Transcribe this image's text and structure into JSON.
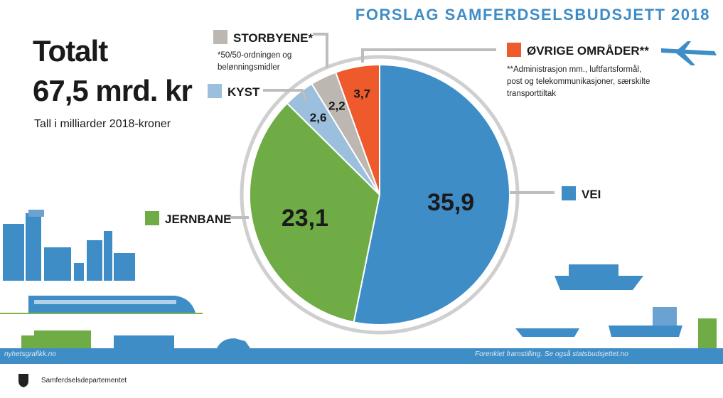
{
  "header": {
    "title": "FORSLAG SAMFERDSELSBUDSJETT 2018"
  },
  "total": {
    "label": "Totalt",
    "value": "67,5 mrd. kr",
    "subtitle": "Tall i milliarder 2018-kroner"
  },
  "legend": {
    "storbyene": {
      "label": "STORBYENE*",
      "note_line1": "*50/50-ordningen og",
      "note_line2": "belønningsmidler"
    },
    "ovrige": {
      "label": "ØVRIGE OMRÅDER**",
      "note_line1": "**Administrasjon mm., luftfartsformål,",
      "note_line2": "post og telekommunikasjoner, særskilte",
      "note_line3": "transporttiltak"
    },
    "kyst": {
      "label": "KYST"
    },
    "vei": {
      "label": "VEI"
    },
    "jernbane": {
      "label": "JERNBANE"
    }
  },
  "chart_data": {
    "type": "pie",
    "title": "FORSLAG SAMFERDSELSBUDSJETT 2018",
    "total": 67.5,
    "unit": "mrd. kr",
    "slices": [
      {
        "name": "VEI",
        "value": 35.9,
        "label": "35,9",
        "color": "#3f8dc6"
      },
      {
        "name": "JERNBANE",
        "value": 23.1,
        "label": "23,1",
        "color": "#6fac45"
      },
      {
        "name": "KYST",
        "value": 2.6,
        "label": "2,6",
        "color": "#9bbfdc"
      },
      {
        "name": "STORBYENE*",
        "value": 2.2,
        "label": "2,2",
        "color": "#bcb7b1"
      },
      {
        "name": "ØVRIGE OMRÅDER**",
        "value": 3.7,
        "label": "3,7",
        "color": "#ee5a2c"
      }
    ]
  },
  "colors": {
    "accent": "#3f8dc6",
    "green": "#6fac45",
    "grey": "#bcb7b1",
    "orange": "#ee5a2c",
    "lightblue": "#9bbfdc"
  },
  "footer": {
    "left": "nyhetsgrafikk.no",
    "right": "Forenklet framstilling. Se også statsbudsjettet.no",
    "ministry": "Samferdselsdepartementet"
  }
}
